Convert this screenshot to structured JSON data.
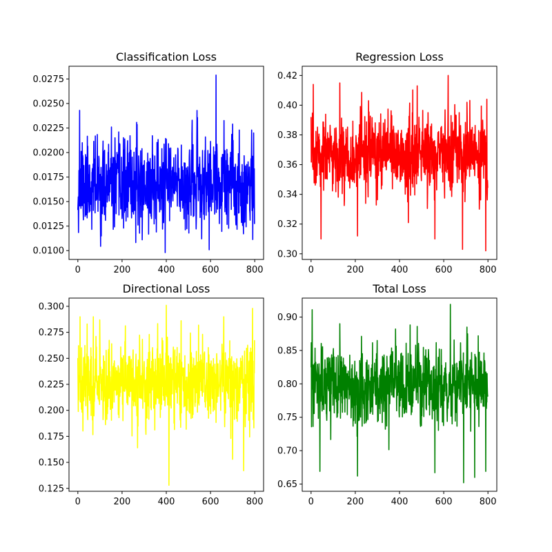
{
  "figure_background": "#ffffff",
  "chart_data": [
    {
      "type": "line",
      "title": "Classification Loss",
      "xlabel": "",
      "ylabel": "",
      "color": "#0000ff",
      "grid": false,
      "xlim": [
        -40,
        840
      ],
      "ylim": [
        0.0091,
        0.0288
      ],
      "xticks": [
        0,
        200,
        400,
        600,
        800
      ],
      "yticks": [
        0.01,
        0.0125,
        0.015,
        0.0175,
        0.02,
        0.0225,
        0.025,
        0.0275
      ],
      "ytick_labels": [
        "0.0100",
        "0.0125",
        "0.0150",
        "0.0175",
        "0.0200",
        "0.0225",
        "0.0250",
        "0.0275"
      ],
      "series": [
        {
          "x_start": 0,
          "x_end": 799,
          "n": 800,
          "center": 0.0167,
          "spread": 0.0022,
          "seed": 11,
          "peaks": [
            [
              8,
              0.0243
            ],
            [
              20,
              0.021
            ],
            [
              290,
              0.0204
            ],
            [
              355,
              0.0119
            ],
            [
              395,
              0.0098
            ],
            [
              410,
              0.0209
            ],
            [
              560,
              0.0112
            ],
            [
              625,
              0.0279
            ],
            [
              650,
              0.0195
            ],
            [
              700,
              0.0229
            ],
            [
              795,
              0.022
            ]
          ]
        }
      ]
    },
    {
      "type": "line",
      "title": "Regression Loss",
      "xlabel": "",
      "ylabel": "",
      "color": "#ff0000",
      "grid": false,
      "xlim": [
        -40,
        840
      ],
      "ylim": [
        0.2962,
        0.4262
      ],
      "xticks": [
        0,
        200,
        400,
        600,
        800
      ],
      "yticks": [
        0.3,
        0.32,
        0.34,
        0.36,
        0.38,
        0.4,
        0.42
      ],
      "ytick_labels": [
        "0.30",
        "0.32",
        "0.34",
        "0.36",
        "0.38",
        "0.40",
        "0.42"
      ],
      "series": [
        {
          "x_start": 0,
          "x_end": 799,
          "n": 800,
          "center": 0.366,
          "spread": 0.013,
          "seed": 23,
          "peaks": [
            [
              10,
              0.414
            ],
            [
              45,
              0.31
            ],
            [
              130,
              0.415
            ],
            [
              210,
              0.312
            ],
            [
              260,
              0.403
            ],
            [
              440,
              0.321
            ],
            [
              480,
              0.413
            ],
            [
              560,
              0.31
            ],
            [
              620,
              0.42
            ],
            [
              685,
              0.303
            ],
            [
              705,
              0.402
            ],
            [
              790,
              0.302
            ],
            [
              795,
              0.404
            ]
          ]
        }
      ]
    },
    {
      "type": "line",
      "title": "Directional Loss",
      "xlabel": "",
      "ylabel": "",
      "color": "#ffff00",
      "grid": false,
      "xlim": [
        -40,
        840
      ],
      "ylim": [
        0.1222,
        0.3079
      ],
      "xticks": [
        0,
        200,
        400,
        600,
        800
      ],
      "yticks": [
        0.125,
        0.15,
        0.175,
        0.2,
        0.225,
        0.25,
        0.275,
        0.3
      ],
      "ytick_labels": [
        "0.125",
        "0.150",
        "0.175",
        "0.200",
        "0.225",
        "0.250",
        "0.275",
        "0.300"
      ],
      "series": [
        {
          "x_start": 0,
          "x_end": 799,
          "n": 800,
          "center": 0.228,
          "spread": 0.019,
          "seed": 37,
          "peaks": [
            [
              10,
              0.29
            ],
            [
              70,
              0.29
            ],
            [
              270,
              0.164
            ],
            [
              400,
              0.301
            ],
            [
              412,
              0.128
            ],
            [
              660,
              0.29
            ],
            [
              700,
              0.153
            ],
            [
              750,
              0.142
            ],
            [
              790,
              0.298
            ]
          ]
        }
      ]
    },
    {
      "type": "line",
      "title": "Total Loss",
      "xlabel": "",
      "ylabel": "",
      "color": "#008000",
      "grid": false,
      "xlim": [
        -40,
        840
      ],
      "ylim": [
        0.6392,
        0.9284
      ],
      "xticks": [
        0,
        200,
        400,
        600,
        800
      ],
      "yticks": [
        0.65,
        0.7,
        0.75,
        0.8,
        0.85,
        0.9
      ],
      "ytick_labels": [
        "0.65",
        "0.70",
        "0.75",
        "0.80",
        "0.85",
        "0.90"
      ],
      "series": [
        {
          "x_start": 0,
          "x_end": 799,
          "n": 800,
          "center": 0.797,
          "spread": 0.028,
          "seed": 53,
          "peaks": [
            [
              5,
              0.911
            ],
            [
              40,
              0.669
            ],
            [
              130,
              0.89
            ],
            [
              210,
              0.662
            ],
            [
              480,
              0.886
            ],
            [
              560,
              0.667
            ],
            [
              630,
              0.919
            ],
            [
              690,
              0.652
            ],
            [
              705,
              0.885
            ],
            [
              740,
              0.66
            ],
            [
              790,
              0.669
            ]
          ]
        }
      ]
    }
  ]
}
